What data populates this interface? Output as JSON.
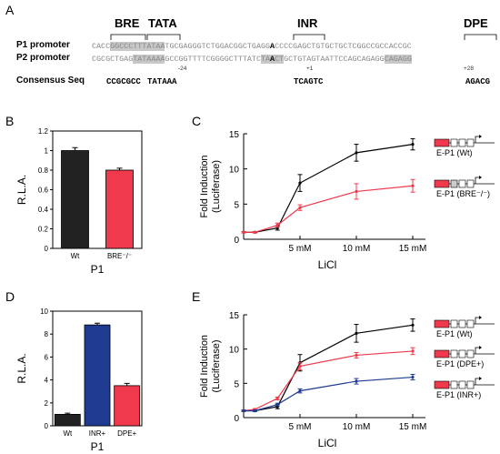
{
  "panels": {
    "A": {
      "letter": "A",
      "elements": {
        "bre": "BRE",
        "tata": "TATA",
        "inr": "INR",
        "dpe": "DPE"
      },
      "p1_label": "P1 promoter",
      "p2_label": "P2 promoter",
      "consensus_label": "Consensus Seq",
      "p1_seq": {
        "pre": "CACC",
        "hl1": "GGCCCTTTATAA",
        "mid": "TGCGAGGGTCTGGACGGCTGAGG",
        "inr_b": "A",
        "mid2": "CCCCGAGCTGTGCTGCTCGGCCGCCACCGC"
      },
      "p2_seq": {
        "pre": "CGCGCTGAG",
        "hl1": "TATAAAA",
        "mid": "GCCGGTTTTCGGGGCTTTATC",
        "hl2a": "TA",
        "inr_b": "A",
        "hl2b": "CT",
        "mid2": "GCTGTAGTAATTCCAGCAGAGG",
        "hl3": "CAGAGG"
      },
      "pos": {
        "m24": "-24",
        "p1": "+1",
        "p28": "+28"
      },
      "consensus": {
        "bre": "CCGCGCC",
        "tata": "TATAAA",
        "inr": "TCAGTC",
        "dpe": "AGACG"
      }
    },
    "B": {
      "letter": "B",
      "ylabel": "R.L.A.",
      "xgroup": "P1"
    },
    "C": {
      "letter": "C",
      "ylabel": "Fold Induction",
      "ylabel2": "(Luciferase)",
      "xlabel": "LiCl",
      "legend": [
        "E-P1 (Wt)",
        "E-P1 (BRE⁻/⁻)"
      ]
    },
    "D": {
      "letter": "D",
      "ylabel": "R.L.A.",
      "xgroup": "P1"
    },
    "E": {
      "letter": "E",
      "ylabel": "Fold Induction",
      "ylabel2": "(Luciferase)",
      "xlabel": "LiCl",
      "legend": [
        "E-P1 (Wt)",
        "E-P1 (DPE+)",
        "E-P1 (INR+)"
      ]
    }
  },
  "chart_data": [
    {
      "id": "B",
      "type": "bar",
      "categories": [
        "Wt",
        "BRE⁻/⁻"
      ],
      "values": [
        1.0,
        0.8
      ],
      "errors": [
        0.03,
        0.02
      ],
      "colors": [
        "#222222",
        "#f0394c"
      ],
      "ylim": [
        0,
        1.2
      ],
      "yticks": [
        "0",
        "0.2",
        "0.4",
        "0.6",
        "0.8",
        "1",
        "1.2"
      ],
      "xlabel": "P1",
      "ylabel": "R.L.A."
    },
    {
      "id": "C",
      "type": "line",
      "x": [
        0,
        1,
        3,
        5,
        10,
        15
      ],
      "xticks": [
        "5 mM",
        "10 mM",
        "15 mM"
      ],
      "xtick_values": [
        5,
        10,
        15
      ],
      "ylim": [
        0,
        15
      ],
      "yticks": [
        "0",
        "5",
        "10",
        "15"
      ],
      "series": [
        {
          "name": "E-P1 (Wt)",
          "color": "#000000",
          "values": [
            1.0,
            1.0,
            1.6,
            8.0,
            12.3,
            13.5
          ],
          "errors": [
            0.1,
            0.1,
            0.3,
            1.2,
            1.2,
            0.8
          ]
        },
        {
          "name": "E-P1 (BRE⁻/⁻)",
          "color": "#f0394c",
          "values": [
            1.0,
            1.0,
            2.0,
            4.5,
            6.8,
            7.6
          ],
          "errors": [
            0.1,
            0.1,
            0.3,
            0.4,
            1.1,
            0.9
          ]
        }
      ],
      "xlabel": "LiCl",
      "ylabel": "Fold Induction (Luciferase)"
    },
    {
      "id": "D",
      "type": "bar",
      "categories": [
        "Wt",
        "INR+",
        "DPE+"
      ],
      "values": [
        1.0,
        8.8,
        3.5
      ],
      "errors": [
        0.1,
        0.15,
        0.2
      ],
      "colors": [
        "#222222",
        "#1f3b8f",
        "#f0394c"
      ],
      "ylim": [
        0,
        10
      ],
      "yticks": [
        "0",
        "2",
        "4",
        "6",
        "8",
        "10"
      ],
      "xlabel": "P1",
      "ylabel": "R.L.A."
    },
    {
      "id": "E",
      "type": "line",
      "x": [
        0,
        1,
        3,
        5,
        10,
        15
      ],
      "xticks": [
        "5 mM",
        "10 mM",
        "15 mM"
      ],
      "xtick_values": [
        5,
        10,
        15
      ],
      "ylim": [
        0,
        15
      ],
      "yticks": [
        "0",
        "5",
        "10",
        "15"
      ],
      "series": [
        {
          "name": "E-P1 (Wt)",
          "color": "#000000",
          "values": [
            1.0,
            1.0,
            1.6,
            8.0,
            12.3,
            13.5
          ],
          "errors": [
            0.1,
            0.1,
            0.3,
            1.2,
            1.3,
            0.9
          ]
        },
        {
          "name": "E-P1 (DPE+)",
          "color": "#f0394c",
          "values": [
            1.0,
            1.2,
            2.8,
            7.5,
            9.1,
            9.7
          ],
          "errors": [
            0.1,
            0.1,
            0.2,
            0.5,
            0.4,
            0.5
          ]
        },
        {
          "name": "E-P1 (INR+)",
          "color": "#1f3b8f",
          "values": [
            1.0,
            1.0,
            1.9,
            3.9,
            5.3,
            5.9
          ],
          "errors": [
            0.1,
            0.1,
            0.2,
            0.3,
            0.4,
            0.4
          ]
        }
      ],
      "xlabel": "LiCl",
      "ylabel": "Fold Induction (Luciferase)"
    }
  ]
}
